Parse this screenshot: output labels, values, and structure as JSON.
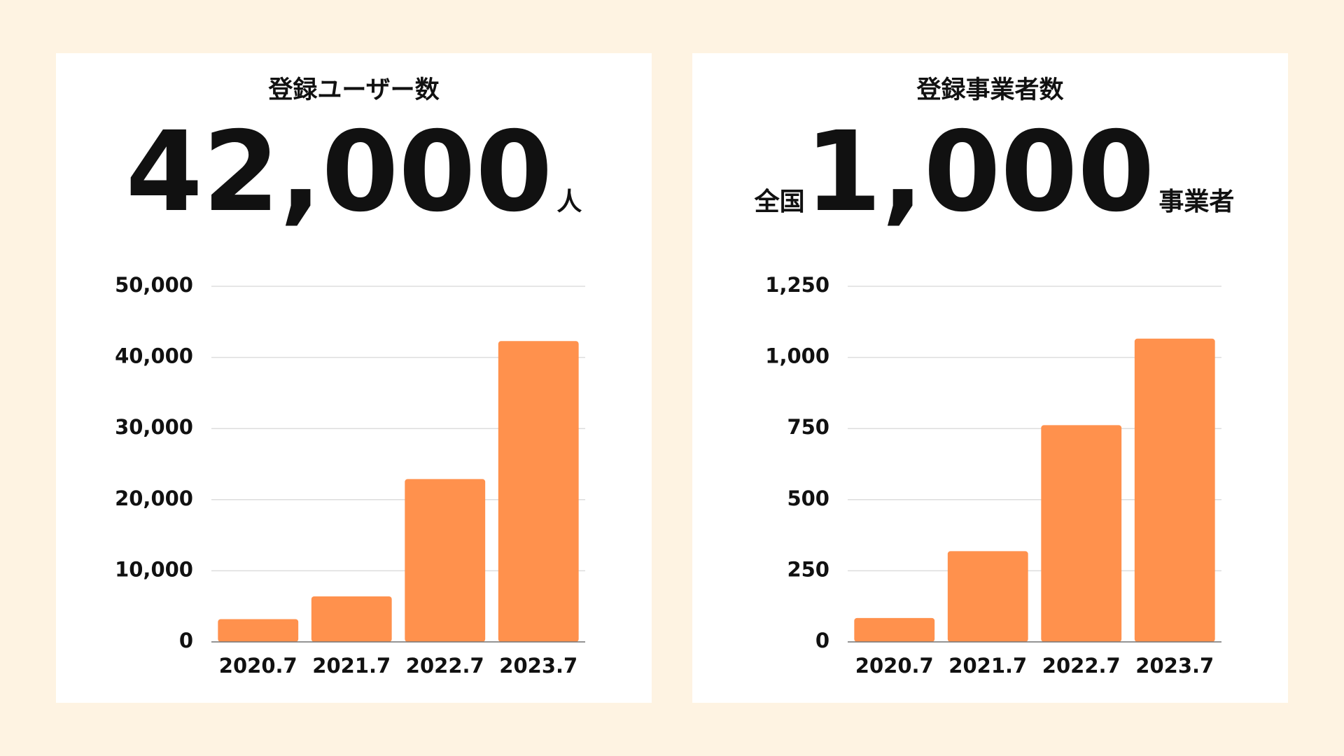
{
  "chart_data": [
    {
      "type": "bar",
      "title": "登録ユーザー数",
      "headline": {
        "number": "42,000",
        "unit": "人"
      },
      "categories": [
        "2020.7",
        "2021.7",
        "2022.7",
        "2023.7"
      ],
      "values": [
        3200,
        6400,
        22900,
        42300
      ],
      "color": "#ff914d",
      "ylim": [
        0,
        50000
      ],
      "yticks": [
        0,
        {
          "value": 10000,
          "label": "10,000"
        },
        {
          "value": 20000,
          "label": "20,000"
        },
        {
          "value": 30000,
          "label": "30,000"
        },
        {
          "value": 40000,
          "label": "40,000"
        },
        {
          "value": 50000,
          "label": "50,000"
        }
      ],
      "grid": true
    },
    {
      "type": "bar",
      "title": "登録事業者数",
      "headline": {
        "prefix": "全国",
        "number": "1,000",
        "unit": "事業者"
      },
      "categories": [
        "2020.7",
        "2021.7",
        "2022.7",
        "2023.7"
      ],
      "values": [
        84,
        319,
        762,
        1066
      ],
      "color": "#ff914d",
      "ylim": [
        0,
        1250
      ],
      "yticks": [
        0,
        250,
        500,
        750,
        {
          "value": 1000,
          "label": "1,000"
        },
        {
          "value": 1250,
          "label": "1,250"
        }
      ],
      "grid": true
    }
  ]
}
